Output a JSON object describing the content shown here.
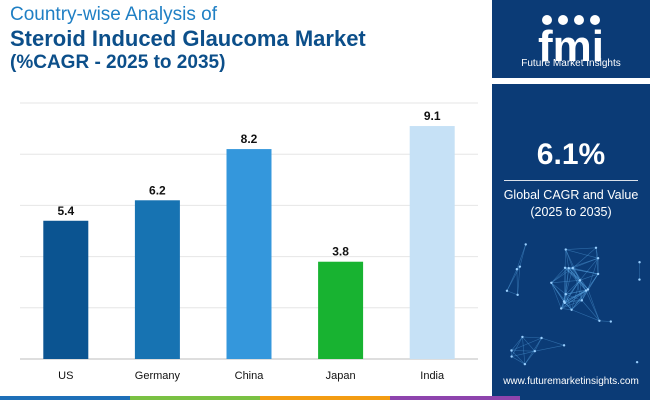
{
  "header": {
    "line1": "Country-wise Analysis of",
    "line2": "Steroid Induced Glaucoma Market",
    "line3": "(%CAGR - 2025 to 2035)"
  },
  "chart_data": {
    "type": "bar",
    "categories": [
      "US",
      "Germany",
      "China",
      "Japan",
      "India"
    ],
    "values": [
      5.4,
      6.2,
      8.2,
      3.8,
      9.1
    ],
    "value_labels": [
      "5.4",
      "6.2",
      "8.2",
      "3.8",
      "9.1"
    ],
    "colors": [
      "#0b5491",
      "#1773b2",
      "#3497dc",
      "#18b331",
      "#c6e1f6"
    ],
    "ylim": [
      0,
      10
    ],
    "grid": true,
    "xlabel": "",
    "ylabel": ""
  },
  "sidebar": {
    "brand": "fmi",
    "tagline": "Future Market Insights",
    "kpi_value": "6.1%",
    "kpi_label_line1": "Global CAGR and Value",
    "kpi_label_line2": "(2025 to 2035)",
    "website": "www.futuremarketinsights.com",
    "bg_color": "#0b3b76"
  },
  "footer_colors": [
    "#1e6fb8",
    "#7ac143",
    "#f39c12",
    "#8e44ad",
    "#0b3b76"
  ]
}
